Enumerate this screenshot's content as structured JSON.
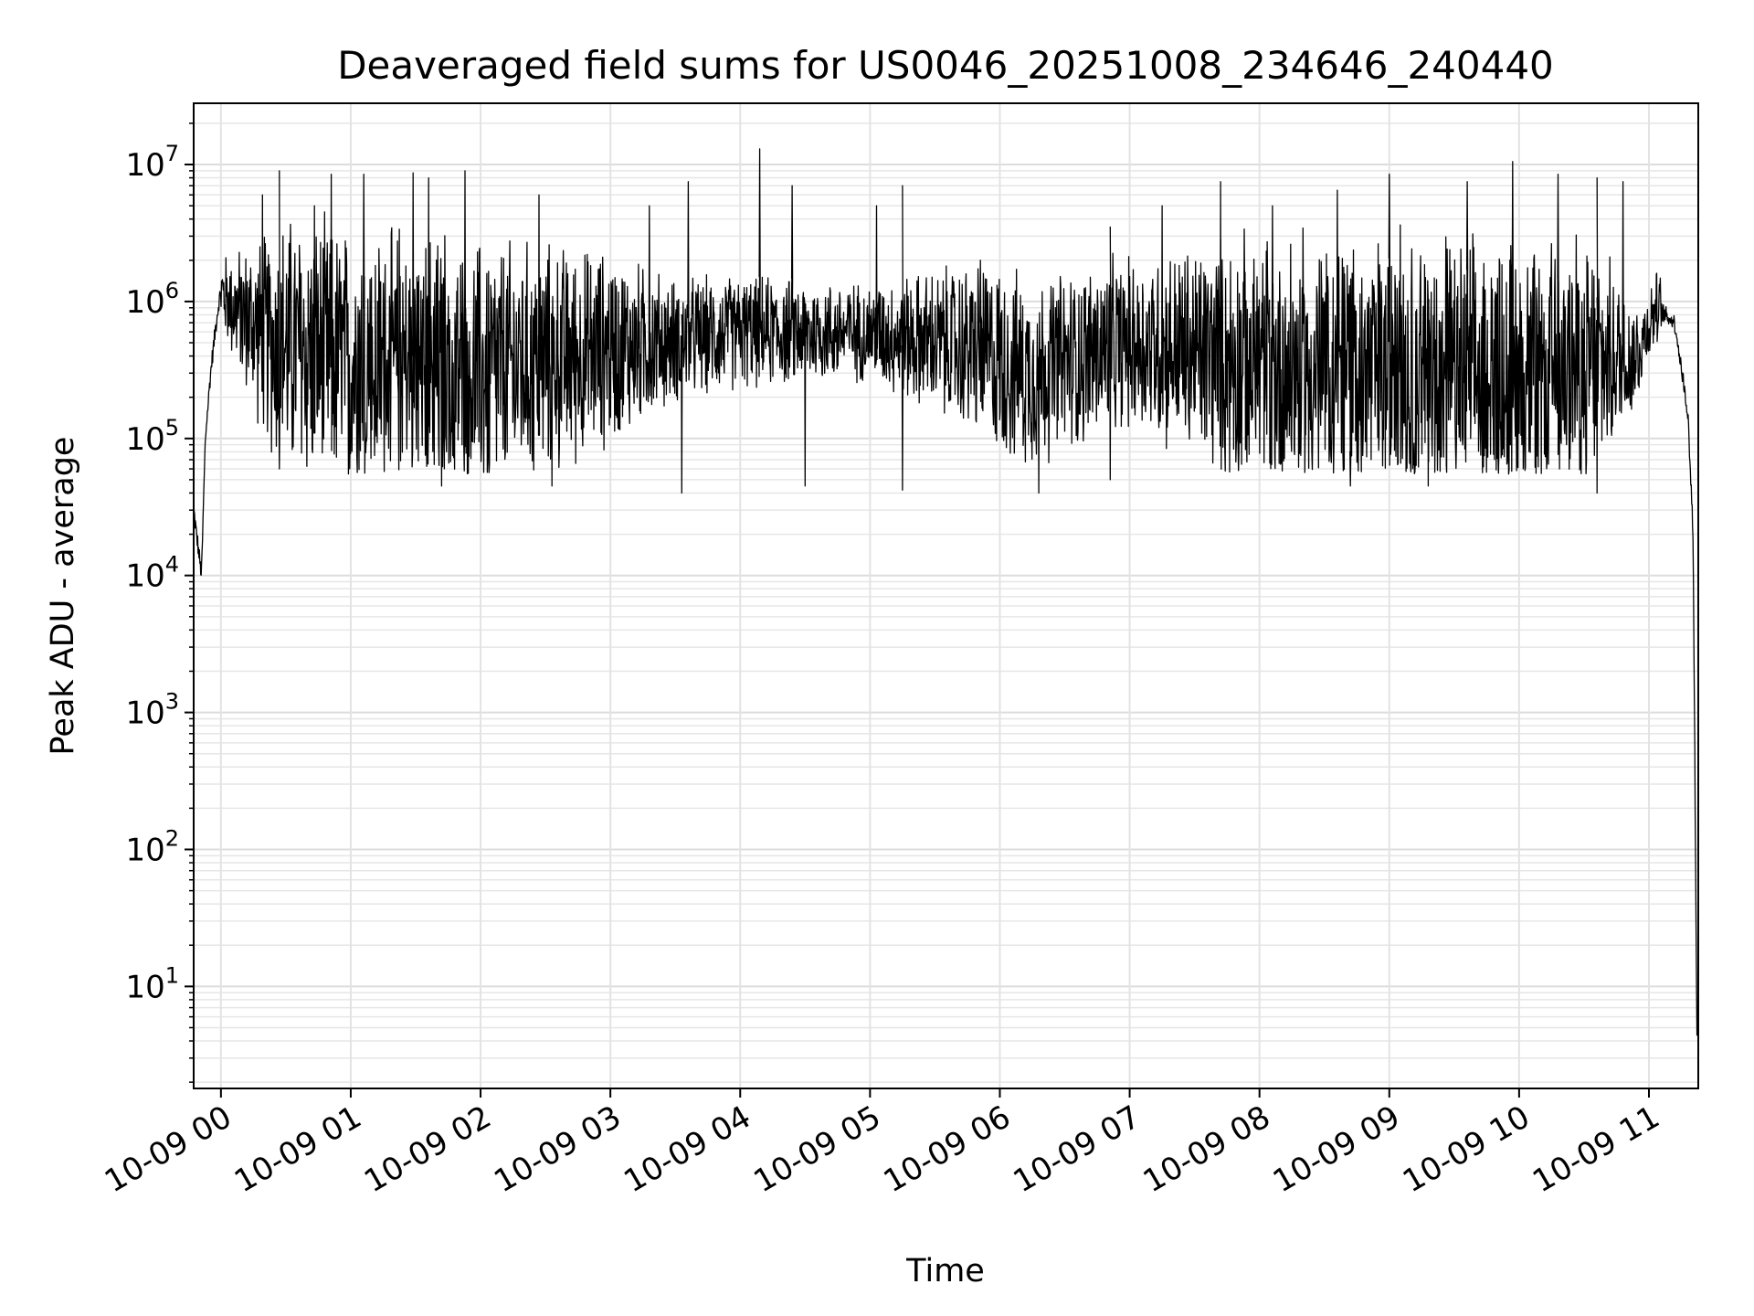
{
  "chart_data": {
    "type": "line",
    "title": "Deaveraged field sums for US0046_20251008_234646_240440",
    "xlabel": "Time",
    "ylabel": "Peak ADU - average",
    "yscale": "log",
    "ylim": [
      1.8,
      28000000
    ],
    "xlim_hours": [
      -0.21,
      11.38
    ],
    "grid": true,
    "x_tick_labels": [
      "10-09 00",
      "10-09 01",
      "10-09 02",
      "10-09 03",
      "10-09 04",
      "10-09 05",
      "10-09 06",
      "10-09 07",
      "10-09 08",
      "10-09 09",
      "10-09 10",
      "10-09 11"
    ],
    "x_tick_hours": [
      0,
      1,
      2,
      3,
      4,
      5,
      6,
      7,
      8,
      9,
      10,
      11
    ],
    "y_ticks": [
      {
        "value": 10,
        "base": "10",
        "exp": "1"
      },
      {
        "value": 100,
        "base": "10",
        "exp": "2"
      },
      {
        "value": 1000,
        "base": "10",
        "exp": "3"
      },
      {
        "value": 10000,
        "base": "10",
        "exp": "4"
      },
      {
        "value": 100000,
        "base": "10",
        "exp": "5"
      },
      {
        "value": 1000000,
        "base": "10",
        "exp": "6"
      },
      {
        "value": 10000000,
        "base": "10",
        "exp": "7"
      }
    ],
    "series": [
      {
        "name": "deaveraged field sum",
        "color": "#000000",
        "envelope": [
          {
            "hour": -0.21,
            "value": 30000
          },
          {
            "hour": -0.15,
            "value": 10000
          },
          {
            "hour": -0.12,
            "value": 100000
          },
          {
            "hour": -0.08,
            "value": 300000
          },
          {
            "hour": -0.03,
            "value": 800000
          },
          {
            "hour": 0.0,
            "value": 1200000
          },
          {
            "hour": 0.1,
            "value": 900000
          },
          {
            "hour": 0.4,
            "value": 500000
          },
          {
            "hour": 1.0,
            "value": 350000
          },
          {
            "hour": 2.0,
            "value": 300000
          },
          {
            "hour": 3.0,
            "value": 450000
          },
          {
            "hour": 4.0,
            "value": 600000
          },
          {
            "hour": 5.0,
            "value": 600000
          },
          {
            "hour": 5.8,
            "value": 450000
          },
          {
            "hour": 6.2,
            "value": 300000
          },
          {
            "hour": 7.0,
            "value": 500000
          },
          {
            "hour": 8.0,
            "value": 350000
          },
          {
            "hour": 9.0,
            "value": 300000
          },
          {
            "hour": 10.0,
            "value": 280000
          },
          {
            "hour": 10.9,
            "value": 400000
          },
          {
            "hour": 11.05,
            "value": 900000
          },
          {
            "hour": 11.2,
            "value": 700000
          },
          {
            "hour": 11.3,
            "value": 150000
          },
          {
            "hour": 11.34,
            "value": 20000
          },
          {
            "hour": 11.37,
            "value": 4
          }
        ],
        "noise_spread_decades": [
          {
            "hour": 0.0,
            "spread": 0.3
          },
          {
            "hour": 0.5,
            "spread": 1.1
          },
          {
            "hour": 2.0,
            "spread": 1.1
          },
          {
            "hour": 3.0,
            "spread": 0.8
          },
          {
            "hour": 3.5,
            "spread": 0.5
          },
          {
            "hour": 5.0,
            "spread": 0.4
          },
          {
            "hour": 6.0,
            "spread": 0.8
          },
          {
            "hour": 7.0,
            "spread": 0.7
          },
          {
            "hour": 8.0,
            "spread": 1.1
          },
          {
            "hour": 10.5,
            "spread": 1.1
          },
          {
            "hour": 11.0,
            "spread": 0.3
          }
        ],
        "peaks": [
          {
            "hour": 0.32,
            "value": 6000000
          },
          {
            "hour": 0.45,
            "value": 9000000
          },
          {
            "hour": 0.72,
            "value": 5000000
          },
          {
            "hour": 0.85,
            "value": 8500000
          },
          {
            "hour": 1.1,
            "value": 8500000
          },
          {
            "hour": 1.48,
            "value": 8700000
          },
          {
            "hour": 1.6,
            "value": 8000000
          },
          {
            "hour": 1.88,
            "value": 9000000
          },
          {
            "hour": 2.45,
            "value": 6000000
          },
          {
            "hour": 3.3,
            "value": 5000000
          },
          {
            "hour": 3.6,
            "value": 7500000
          },
          {
            "hour": 4.15,
            "value": 13000000
          },
          {
            "hour": 4.4,
            "value": 7000000
          },
          {
            "hour": 5.05,
            "value": 5000000
          },
          {
            "hour": 5.25,
            "value": 7000000
          },
          {
            "hour": 5.85,
            "value": 2000000
          },
          {
            "hour": 6.85,
            "value": 3500000
          },
          {
            "hour": 7.25,
            "value": 5000000
          },
          {
            "hour": 7.7,
            "value": 7500000
          },
          {
            "hour": 8.1,
            "value": 5000000
          },
          {
            "hour": 8.6,
            "value": 6500000
          },
          {
            "hour": 9.0,
            "value": 8500000
          },
          {
            "hour": 9.6,
            "value": 7500000
          },
          {
            "hour": 9.95,
            "value": 10500000
          },
          {
            "hour": 10.3,
            "value": 8500000
          },
          {
            "hour": 10.6,
            "value": 8000000
          },
          {
            "hour": 10.8,
            "value": 7500000
          }
        ],
        "dips": [
          {
            "hour": 0.45,
            "value": 60000
          },
          {
            "hour": 1.7,
            "value": 45000
          },
          {
            "hour": 2.55,
            "value": 45000
          },
          {
            "hour": 3.55,
            "value": 40000
          },
          {
            "hour": 4.5,
            "value": 45000
          },
          {
            "hour": 5.25,
            "value": 42000
          },
          {
            "hour": 6.3,
            "value": 40000
          },
          {
            "hour": 6.85,
            "value": 50000
          },
          {
            "hour": 8.7,
            "value": 45000
          },
          {
            "hour": 9.3,
            "value": 45000
          },
          {
            "hour": 10.6,
            "value": 40000
          }
        ]
      }
    ]
  }
}
